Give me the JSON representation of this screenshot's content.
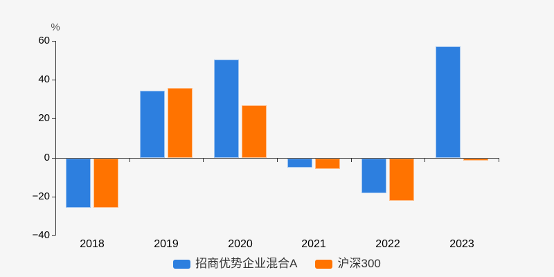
{
  "chart_data": {
    "type": "bar",
    "title": "",
    "ylabel": "%",
    "xlabel": "",
    "categories": [
      "2018",
      "2019",
      "2020",
      "2021",
      "2022",
      "2023"
    ],
    "series": [
      {
        "name": "招商优势企业混合A",
        "color": "#2d7fdf",
        "values": [
          -25.4,
          34.6,
          50.6,
          -4.5,
          -17.8,
          57.3
        ]
      },
      {
        "name": "沪深300",
        "color": "#ff7300",
        "values": [
          -25.3,
          36.1,
          27.2,
          -5.2,
          -21.6,
          -1.0
        ]
      }
    ],
    "ylim": [
      -40,
      60
    ],
    "yticks": [
      60,
      40,
      20,
      0,
      -20,
      -40
    ],
    "grid": false,
    "legend_position": "bottom-center",
    "unit": "percent"
  },
  "styles": {
    "background": "#f6f6f6",
    "axis_color": "#333333",
    "tick_label_color": "#555555",
    "legend_text_color": "#333333",
    "bar_border": "rgba(255,255,255,0.55)"
  }
}
